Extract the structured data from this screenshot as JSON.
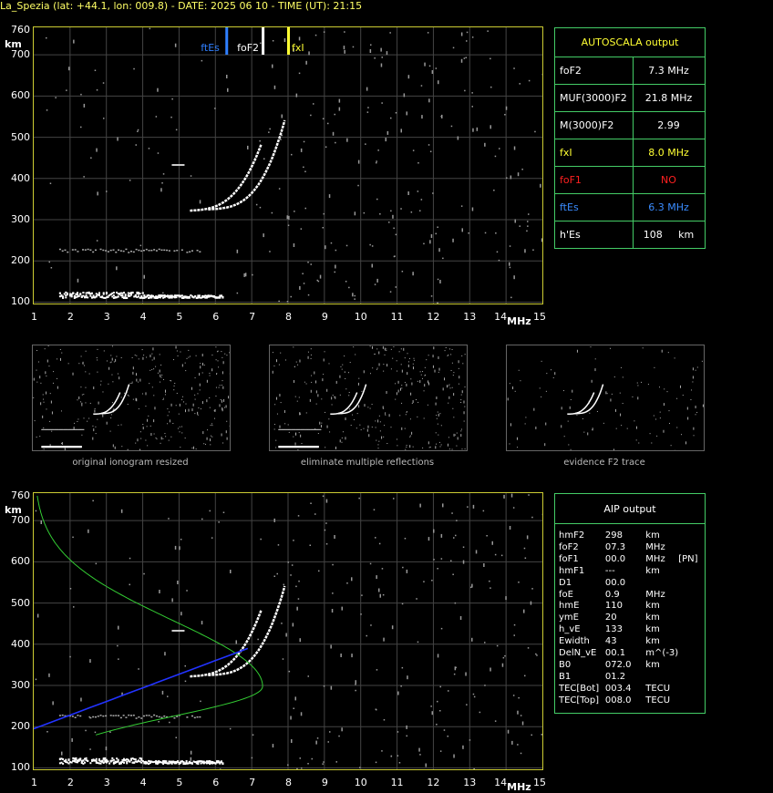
{
  "header": "La_Spezia (lat: +44.1, lon: 009.8) - DATE: 2025 06 10 - TIME (UT): 21:15",
  "axes": {
    "y_unit": "km",
    "x_unit": "MHz",
    "y_ticks": [
      "760",
      "700",
      "600",
      "500",
      "400",
      "300",
      "200",
      "100"
    ],
    "x_ticks": [
      "1",
      "2",
      "3",
      "4",
      "5",
      "6",
      "7",
      "8",
      "9",
      "10",
      "11",
      "12",
      "13",
      "14",
      "15"
    ]
  },
  "top_ionogram": {
    "markers": [
      {
        "label": "ftEs",
        "freq": 6.3,
        "color": "#2f7fff"
      },
      {
        "label": "foF2",
        "freq": 7.3,
        "color": "#ffffff"
      },
      {
        "label": "fxI",
        "freq": 8.0,
        "color": "#ffff33"
      }
    ]
  },
  "autoscala": {
    "title": "AUTOSCALA output",
    "rows": [
      {
        "key": "foF2",
        "value": "7.3 MHz",
        "color": "#ffffff"
      },
      {
        "key": "MUF(3000)F2",
        "value": "21.8 MHz",
        "color": "#ffffff"
      },
      {
        "key": "M(3000)F2",
        "value": "2.99",
        "color": "#ffffff"
      },
      {
        "key": "fxI",
        "value": "8.0 MHz",
        "color": "#ffff33"
      },
      {
        "key": "foF1",
        "value": "NO",
        "color": "#ff2020"
      },
      {
        "key": "ftEs",
        "value": "6.3 MHz",
        "color": "#3a8cff"
      },
      {
        "key": "h'Es",
        "value": "108",
        "unit": "km",
        "color": "#ffffff"
      }
    ]
  },
  "thumbnails": [
    {
      "caption": "original ionogram resized"
    },
    {
      "caption": "eliminate multiple reflections"
    },
    {
      "caption": "evidence F2 trace"
    }
  ],
  "aip": {
    "title": "AIP output",
    "rows": [
      [
        "hmF2",
        "298",
        "km",
        ""
      ],
      [
        "foF2",
        "07.3",
        "MHz",
        ""
      ],
      [
        "foF1",
        "00.0",
        "MHz",
        "[PN]"
      ],
      [
        "hmF1",
        "---",
        "km",
        ""
      ],
      [
        "D1",
        "00.0",
        "",
        ""
      ],
      [
        "foE",
        "0.9",
        "MHz",
        ""
      ],
      [
        "hmE",
        "110",
        "km",
        ""
      ],
      [
        "ymE",
        "20",
        "km",
        ""
      ],
      [
        "h_vE",
        "133",
        "km",
        ""
      ],
      [
        "Ewidth",
        "43",
        "km",
        ""
      ],
      [
        "DelN_vE",
        "00.1",
        "m^(-3)",
        ""
      ],
      [
        "B0",
        "072.0",
        "km",
        ""
      ],
      [
        "B1",
        "01.2",
        "",
        ""
      ],
      [
        "TEC[Bot]",
        "003.4",
        "TECU",
        ""
      ],
      [
        "TEC[Top]",
        "008.0",
        "TECU",
        ""
      ]
    ]
  }
}
